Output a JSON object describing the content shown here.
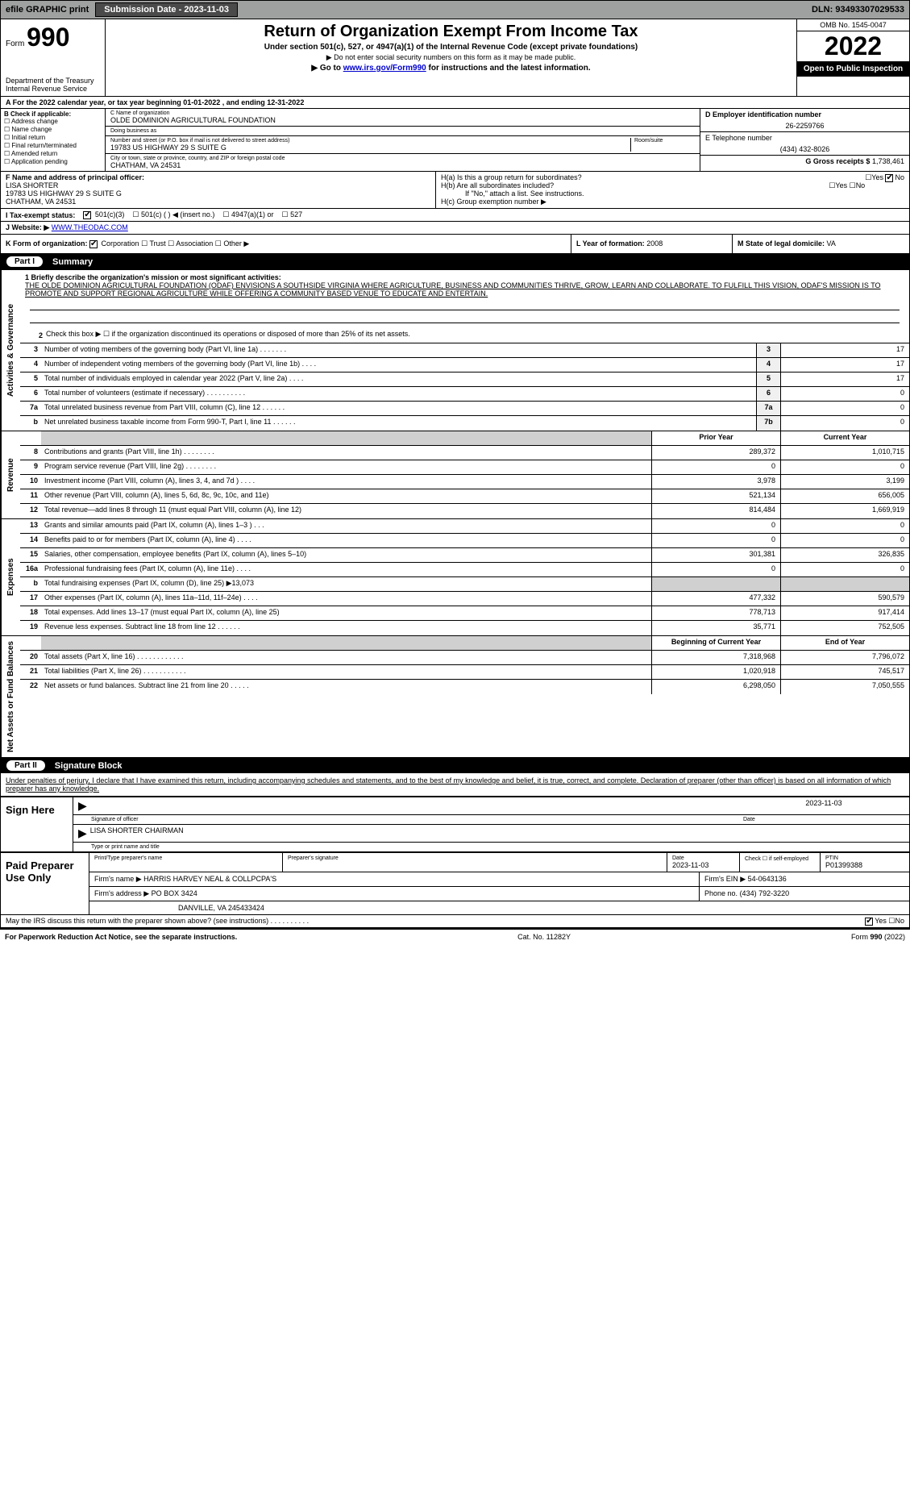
{
  "topbar": {
    "efile": "efile GRAPHIC print",
    "submission_btn": "Submission Date - 2023-11-03",
    "dln": "DLN: 93493307029533"
  },
  "header": {
    "form_prefix": "Form",
    "form_number": "990",
    "title": "Return of Organization Exempt From Income Tax",
    "subtitle": "Under section 501(c), 527, or 4947(a)(1) of the Internal Revenue Code (except private foundations)",
    "note1": "▶ Do not enter social security numbers on this form as it may be made public.",
    "goto_prefix": "▶ Go to ",
    "goto_link": "www.irs.gov/Form990",
    "goto_suffix": " for instructions and the latest information.",
    "omb": "OMB No. 1545-0047",
    "year": "2022",
    "open_public": "Open to Public Inspection",
    "dept": "Department of the Treasury Internal Revenue Service"
  },
  "rowA": "A For the 2022 calendar year, or tax year beginning 01-01-2022    , and ending 12-31-2022",
  "colB": {
    "header": "B Check if applicable:",
    "items": [
      "Address change",
      "Name change",
      "Initial return",
      "Final return/terminated",
      "Amended return",
      "Application pending"
    ]
  },
  "colC": {
    "name_label": "C Name of organization",
    "name": "OLDE DOMINION AGRICULTURAL FOUNDATION",
    "dba_label": "Doing business as",
    "dba": "",
    "addr_label": "Number and street (or P.O. box if mail is not delivered to street address)",
    "room_label": "Room/suite",
    "addr": "19783 US HIGHWAY 29 S SUITE G",
    "city_label": "City or town, state or province, country, and ZIP or foreign postal code",
    "city": "CHATHAM, VA  24531"
  },
  "colD": {
    "ein_label": "D Employer identification number",
    "ein": "26-2259766",
    "phone_label": "E Telephone number",
    "phone": "(434) 432-8026",
    "gross_label": "G Gross receipts $",
    "gross": "1,738,461"
  },
  "rowF": {
    "label": "F  Name and address of principal officer:",
    "name": "LISA SHORTER",
    "addr1": "19783 US HIGHWAY 29 S SUITE G",
    "addr2": "CHATHAM, VA  24531"
  },
  "rowH": {
    "ha": "H(a)  Is this a group return for subordinates?",
    "ha_yes": "Yes",
    "ha_no": "No",
    "hb": "H(b)  Are all subordinates included?",
    "hb_yes": "Yes",
    "hb_no": "No",
    "hb_note": "If \"No,\" attach a list. See instructions.",
    "hc": "H(c)  Group exemption number ▶"
  },
  "rowI": {
    "label": "I  Tax-exempt status:",
    "o1": "501(c)(3)",
    "o2": "501(c) (  ) ◀ (insert no.)",
    "o3": "4947(a)(1) or",
    "o4": "527"
  },
  "rowJ": {
    "label": "J  Website: ▶",
    "url": "WWW.THEODAC.COM"
  },
  "rowK": {
    "left_label": "K Form of organization:",
    "corp": "Corporation",
    "trust": "Trust",
    "assoc": "Association",
    "other": "Other ▶",
    "l_label": "L Year of formation:",
    "l_val": "2008",
    "m_label": "M State of legal domicile:",
    "m_val": "VA"
  },
  "part1": {
    "pill": "Part I",
    "title": "Summary"
  },
  "governance": {
    "side": "Activities & Governance",
    "line1_label": "1  Briefly describe the organization's mission or most significant activities:",
    "mission": "THE OLDE DOMINION AGRICULTURAL FOUNDATION (ODAF) ENVISIONS A SOUTHSIDE VIRGINIA WHERE AGRICULTURE, BUSINESS AND COMMUNITIES THRIVE, GROW, LEARN AND COLLABORATE. TO FULFILL THIS VISION, ODAF'S MISSION IS TO PROMOTE AND SUPPORT REGIONAL AGRICULTURE WHILE OFFERING A COMMUNITY BASED VENUE TO EDUCATE AND ENTERTAIN.",
    "line2": "Check this box ▶ ☐  if the organization discontinued its operations or disposed of more than 25% of its net assets.",
    "lines": [
      {
        "n": "3",
        "t": "Number of voting members of the governing body (Part VI, line 1a)   .    .    .    .    .    .    .",
        "box": "3",
        "v": "17"
      },
      {
        "n": "4",
        "t": "Number of independent voting members of the governing body (Part VI, line 1b)   .    .    .    .",
        "box": "4",
        "v": "17"
      },
      {
        "n": "5",
        "t": "Total number of individuals employed in calendar year 2022 (Part V, line 2a)    .    .    .    .",
        "box": "5",
        "v": "17"
      },
      {
        "n": "6",
        "t": "Total number of volunteers (estimate if necessary)    .    .    .    .    .    .    .    .    .    .",
        "box": "6",
        "v": "0"
      },
      {
        "n": "7a",
        "t": "Total unrelated business revenue from Part VIII, column (C), line 12   .    .    .    .    .    .",
        "box": "7a",
        "v": "0"
      },
      {
        "n": "b",
        "t": "Net unrelated business taxable income from Form 990-T, Part I, line 11   .    .    .    .    .    .",
        "box": "7b",
        "v": "0"
      }
    ]
  },
  "revenue": {
    "side": "Revenue",
    "hdr_prior": "Prior Year",
    "hdr_curr": "Current Year",
    "lines": [
      {
        "n": "8",
        "t": "Contributions and grants (Part VIII, line 1h)   .    .    .    .    .    .    .    .",
        "p": "289,372",
        "c": "1,010,715"
      },
      {
        "n": "9",
        "t": "Program service revenue (Part VIII, line 2g)    .    .    .    .    .    .    .    .",
        "p": "0",
        "c": "0"
      },
      {
        "n": "10",
        "t": "Investment income (Part VIII, column (A), lines 3, 4, and 7d )   .    .    .    .",
        "p": "3,978",
        "c": "3,199"
      },
      {
        "n": "11",
        "t": "Other revenue (Part VIII, column (A), lines 5, 6d, 8c, 9c, 10c, and 11e)",
        "p": "521,134",
        "c": "656,005"
      },
      {
        "n": "12",
        "t": "Total revenue—add lines 8 through 11 (must equal Part VIII, column (A), line 12)",
        "p": "814,484",
        "c": "1,669,919"
      }
    ]
  },
  "expenses": {
    "side": "Expenses",
    "lines": [
      {
        "n": "13",
        "t": "Grants and similar amounts paid (Part IX, column (A), lines 1–3 )   .    .    .",
        "p": "0",
        "c": "0"
      },
      {
        "n": "14",
        "t": "Benefits paid to or for members (Part IX, column (A), line 4)   .    .    .    .",
        "p": "0",
        "c": "0"
      },
      {
        "n": "15",
        "t": "Salaries, other compensation, employee benefits (Part IX, column (A), lines 5–10)",
        "p": "301,381",
        "c": "326,835"
      },
      {
        "n": "16a",
        "t": "Professional fundraising fees (Part IX, column (A), line 11e)   .    .    .    .",
        "p": "0",
        "c": "0"
      },
      {
        "n": "b",
        "t": "Total fundraising expenses (Part IX, column (D), line 25) ▶13,073",
        "p": "",
        "c": "",
        "shaded": true
      },
      {
        "n": "17",
        "t": "Other expenses (Part IX, column (A), lines 11a–11d, 11f–24e)   .    .    .    .",
        "p": "477,332",
        "c": "590,579"
      },
      {
        "n": "18",
        "t": "Total expenses. Add lines 13–17 (must equal Part IX, column (A), line 25)",
        "p": "778,713",
        "c": "917,414"
      },
      {
        "n": "19",
        "t": "Revenue less expenses. Subtract line 18 from line 12   .    .    .    .    .    .",
        "p": "35,771",
        "c": "752,505"
      }
    ]
  },
  "netassets": {
    "side": "Net Assets or Fund Balances",
    "hdr_prior": "Beginning of Current Year",
    "hdr_curr": "End of Year",
    "lines": [
      {
        "n": "20",
        "t": "Total assets (Part X, line 16)   .    .    .    .    .    .    .    .    .    .    .    .",
        "p": "7,318,968",
        "c": "7,796,072"
      },
      {
        "n": "21",
        "t": "Total liabilities (Part X, line 26)   .    .    .    .    .    .    .    .    .    .    .",
        "p": "1,020,918",
        "c": "745,517"
      },
      {
        "n": "22",
        "t": "Net assets or fund balances. Subtract line 21 from line 20   .    .    .    .    .",
        "p": "6,298,050",
        "c": "7,050,555"
      }
    ]
  },
  "part2": {
    "pill": "Part II",
    "title": "Signature Block"
  },
  "sig": {
    "intro": "Under penalties of perjury, I declare that I have examined this return, including accompanying schedules and statements, and to the best of my knowledge and belief, it is true, correct, and complete. Declaration of preparer (other than officer) is based on all information of which preparer has any knowledge.",
    "sign_here": "Sign Here",
    "sig_label": "Signature of officer",
    "date": "2023-11-03",
    "date_label": "Date",
    "name": "LISA SHORTER  CHAIRMAN",
    "name_label": "Type or print name and title"
  },
  "paid": {
    "label": "Paid Preparer Use Only",
    "h1": "Print/Type preparer's name",
    "h2": "Preparer's signature",
    "h3": "Date",
    "h3v": "2023-11-03",
    "h4": "Check ☐ if self-employed",
    "h5": "PTIN",
    "h5v": "P01399388",
    "firm_label": "Firm's name    ▶",
    "firm": "HARRIS HARVEY NEAL & COLLPCPA'S",
    "ein_label": "Firm's EIN ▶",
    "ein": "54-0643136",
    "addr_label": "Firm's address ▶",
    "addr1": "PO BOX 3424",
    "addr2": "DANVILLE, VA  245433424",
    "phone_label": "Phone no.",
    "phone": "(434) 792-3220"
  },
  "discuss": {
    "text": "May the IRS discuss this return with the preparer shown above? (see instructions)   .    .    .    .    .    .    .    .    .    .",
    "yes": "Yes",
    "no": "No"
  },
  "footer": {
    "left": "For Paperwork Reduction Act Notice, see the separate instructions.",
    "mid": "Cat. No. 11282Y",
    "right": "Form 990 (2022)"
  }
}
